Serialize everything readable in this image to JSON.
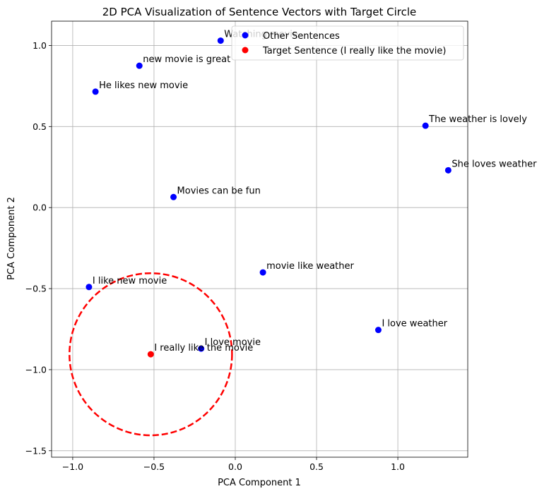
{
  "chart_data": {
    "type": "scatter",
    "title": "2D PCA Visualization of Sentence Vectors with Target Circle",
    "xlabel": "PCA Component 1",
    "ylabel": "PCA Component 2",
    "xlim": [
      -1.13,
      1.43
    ],
    "ylim": [
      -1.54,
      1.15
    ],
    "xticks": [
      -1.0,
      -0.5,
      0.0,
      0.5,
      1.0
    ],
    "xtick_labels": [
      "−1.0",
      "−0.5",
      "0.0",
      "0.5",
      "1.0"
    ],
    "yticks": [
      -1.5,
      -1.0,
      -0.5,
      0.0,
      0.5,
      1.0
    ],
    "ytick_labels": [
      "−1.5",
      "−1.0",
      "−0.5",
      "0.0",
      "0.5",
      "1.0"
    ],
    "grid": true,
    "legend_position": "top-right",
    "series": [
      {
        "name": "Other Sentences",
        "color": "#0000ff",
        "points": [
          {
            "x": -0.09,
            "y": 1.03,
            "label": "Watching movie"
          },
          {
            "x": -0.59,
            "y": 0.875,
            "label": "new movie is great"
          },
          {
            "x": -0.86,
            "y": 0.715,
            "label": "He likes new movie"
          },
          {
            "x": 1.17,
            "y": 0.505,
            "label": "The weather is lovely"
          },
          {
            "x": 1.31,
            "y": 0.23,
            "label": "She loves weather"
          },
          {
            "x": -0.38,
            "y": 0.065,
            "label": "Movies can be fun"
          },
          {
            "x": 0.17,
            "y": -0.4,
            "label": "movie like weather"
          },
          {
            "x": -0.9,
            "y": -0.49,
            "label": "I like new movie"
          },
          {
            "x": 0.88,
            "y": -0.755,
            "label": "I love weather"
          },
          {
            "x": -0.21,
            "y": -0.87,
            "label": "I love movie"
          }
        ]
      },
      {
        "name": "Target Sentence (I really like the movie)",
        "color": "#ff0000",
        "points": [
          {
            "x": -0.52,
            "y": -0.905,
            "label": "I really like the movie"
          }
        ]
      }
    ],
    "circle": {
      "center": [
        -0.52,
        -0.905
      ],
      "radius": 0.5,
      "color": "#ff0000",
      "style": "dashed"
    }
  }
}
